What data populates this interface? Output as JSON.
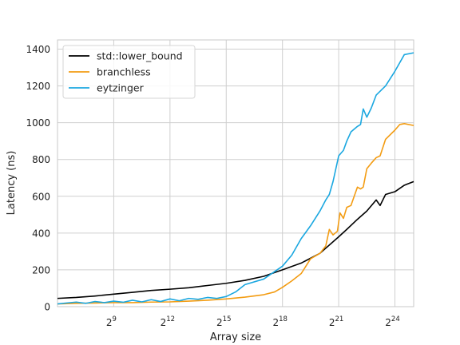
{
  "chart_data": {
    "type": "line",
    "title": "",
    "xlabel": "Array size",
    "ylabel": "Latency (ns)",
    "x_scale": "log2",
    "xlim": [
      64,
      33554432
    ],
    "ylim": [
      0,
      1450
    ],
    "x_ticks": [
      {
        "value": 512,
        "base": "2",
        "exp": "9"
      },
      {
        "value": 4096,
        "base": "2",
        "exp": "12"
      },
      {
        "value": 32768,
        "base": "2",
        "exp": "15"
      },
      {
        "value": 262144,
        "base": "2",
        "exp": "18"
      },
      {
        "value": 2097152,
        "base": "2",
        "exp": "21"
      },
      {
        "value": 16777216,
        "base": "2",
        "exp": "24"
      }
    ],
    "y_ticks": [
      {
        "value": 0,
        "label": "0"
      },
      {
        "value": 200,
        "label": "200"
      },
      {
        "value": 400,
        "label": "400"
      },
      {
        "value": 600,
        "label": "600"
      },
      {
        "value": 800,
        "label": "800"
      },
      {
        "value": 1000,
        "label": "1000"
      },
      {
        "value": 1200,
        "label": "1200"
      },
      {
        "value": 1400,
        "label": "1400"
      }
    ],
    "grid": true,
    "legend_position": "top-left",
    "series": [
      {
        "name": "std::lower_bound",
        "color": "#000000",
        "points": [
          [
            64,
            45
          ],
          [
            128,
            50
          ],
          [
            256,
            58
          ],
          [
            512,
            68
          ],
          [
            1024,
            78
          ],
          [
            2048,
            88
          ],
          [
            4096,
            95
          ],
          [
            8192,
            103
          ],
          [
            16384,
            115
          ],
          [
            32768,
            127
          ],
          [
            65536,
            143
          ],
          [
            131072,
            165
          ],
          [
            262144,
            200
          ],
          [
            524288,
            237
          ],
          [
            1048576,
            290
          ],
          [
            2097152,
            380
          ],
          [
            2826730,
            420
          ],
          [
            4194304,
            475
          ],
          [
            5931642,
            520
          ],
          [
            8388608,
            580
          ],
          [
            9700000,
            550
          ],
          [
            11863283,
            610
          ],
          [
            16777216,
            625
          ],
          [
            23726566,
            660
          ],
          [
            33554432,
            680
          ]
        ]
      },
      {
        "name": "branchless",
        "color": "#f39c12",
        "points": [
          [
            64,
            15
          ],
          [
            128,
            18
          ],
          [
            256,
            20
          ],
          [
            512,
            22
          ],
          [
            1024,
            22
          ],
          [
            2048,
            25
          ],
          [
            4096,
            26
          ],
          [
            8192,
            30
          ],
          [
            16384,
            35
          ],
          [
            32768,
            42
          ],
          [
            65536,
            52
          ],
          [
            131072,
            65
          ],
          [
            196000,
            80
          ],
          [
            262144,
            105
          ],
          [
            370000,
            140
          ],
          [
            524288,
            180
          ],
          [
            741455,
            260
          ],
          [
            1048576,
            290
          ],
          [
            1300000,
            330
          ],
          [
            1482910,
            420
          ],
          [
            1700000,
            390
          ],
          [
            2000000,
            410
          ],
          [
            2200000,
            510
          ],
          [
            2500000,
            480
          ],
          [
            2826730,
            540
          ],
          [
            3300000,
            550
          ],
          [
            4194304,
            650
          ],
          [
            4700000,
            640
          ],
          [
            5200000,
            650
          ],
          [
            5931642,
            750
          ],
          [
            7000000,
            780
          ],
          [
            8388608,
            810
          ],
          [
            9700000,
            820
          ],
          [
            11863283,
            910
          ],
          [
            16777216,
            960
          ],
          [
            20000000,
            990
          ],
          [
            23726566,
            995
          ],
          [
            33554432,
            985
          ]
        ]
      },
      {
        "name": "eytzinger",
        "color": "#1aa7e0",
        "points": [
          [
            64,
            15
          ],
          [
            90,
            20
          ],
          [
            128,
            25
          ],
          [
            181,
            18
          ],
          [
            256,
            28
          ],
          [
            362,
            22
          ],
          [
            512,
            30
          ],
          [
            724,
            24
          ],
          [
            1024,
            35
          ],
          [
            1448,
            26
          ],
          [
            2048,
            38
          ],
          [
            2896,
            28
          ],
          [
            4096,
            42
          ],
          [
            5792,
            32
          ],
          [
            8192,
            45
          ],
          [
            11585,
            40
          ],
          [
            16384,
            50
          ],
          [
            23170,
            45
          ],
          [
            32768,
            55
          ],
          [
            46341,
            80
          ],
          [
            65536,
            120
          ],
          [
            131072,
            150
          ],
          [
            262144,
            220
          ],
          [
            370000,
            280
          ],
          [
            524288,
            370
          ],
          [
            741455,
            440
          ],
          [
            1048576,
            520
          ],
          [
            1300000,
            580
          ],
          [
            1482910,
            610
          ],
          [
            1700000,
            680
          ],
          [
            2097152,
            820
          ],
          [
            2500000,
            850
          ],
          [
            2826730,
            900
          ],
          [
            3300000,
            950
          ],
          [
            4194304,
            980
          ],
          [
            4700000,
            990
          ],
          [
            5200000,
            1075
          ],
          [
            5931642,
            1030
          ],
          [
            7000000,
            1080
          ],
          [
            8388608,
            1150
          ],
          [
            11863283,
            1200
          ],
          [
            16777216,
            1280
          ],
          [
            23726566,
            1370
          ],
          [
            33554432,
            1380
          ]
        ]
      }
    ]
  }
}
